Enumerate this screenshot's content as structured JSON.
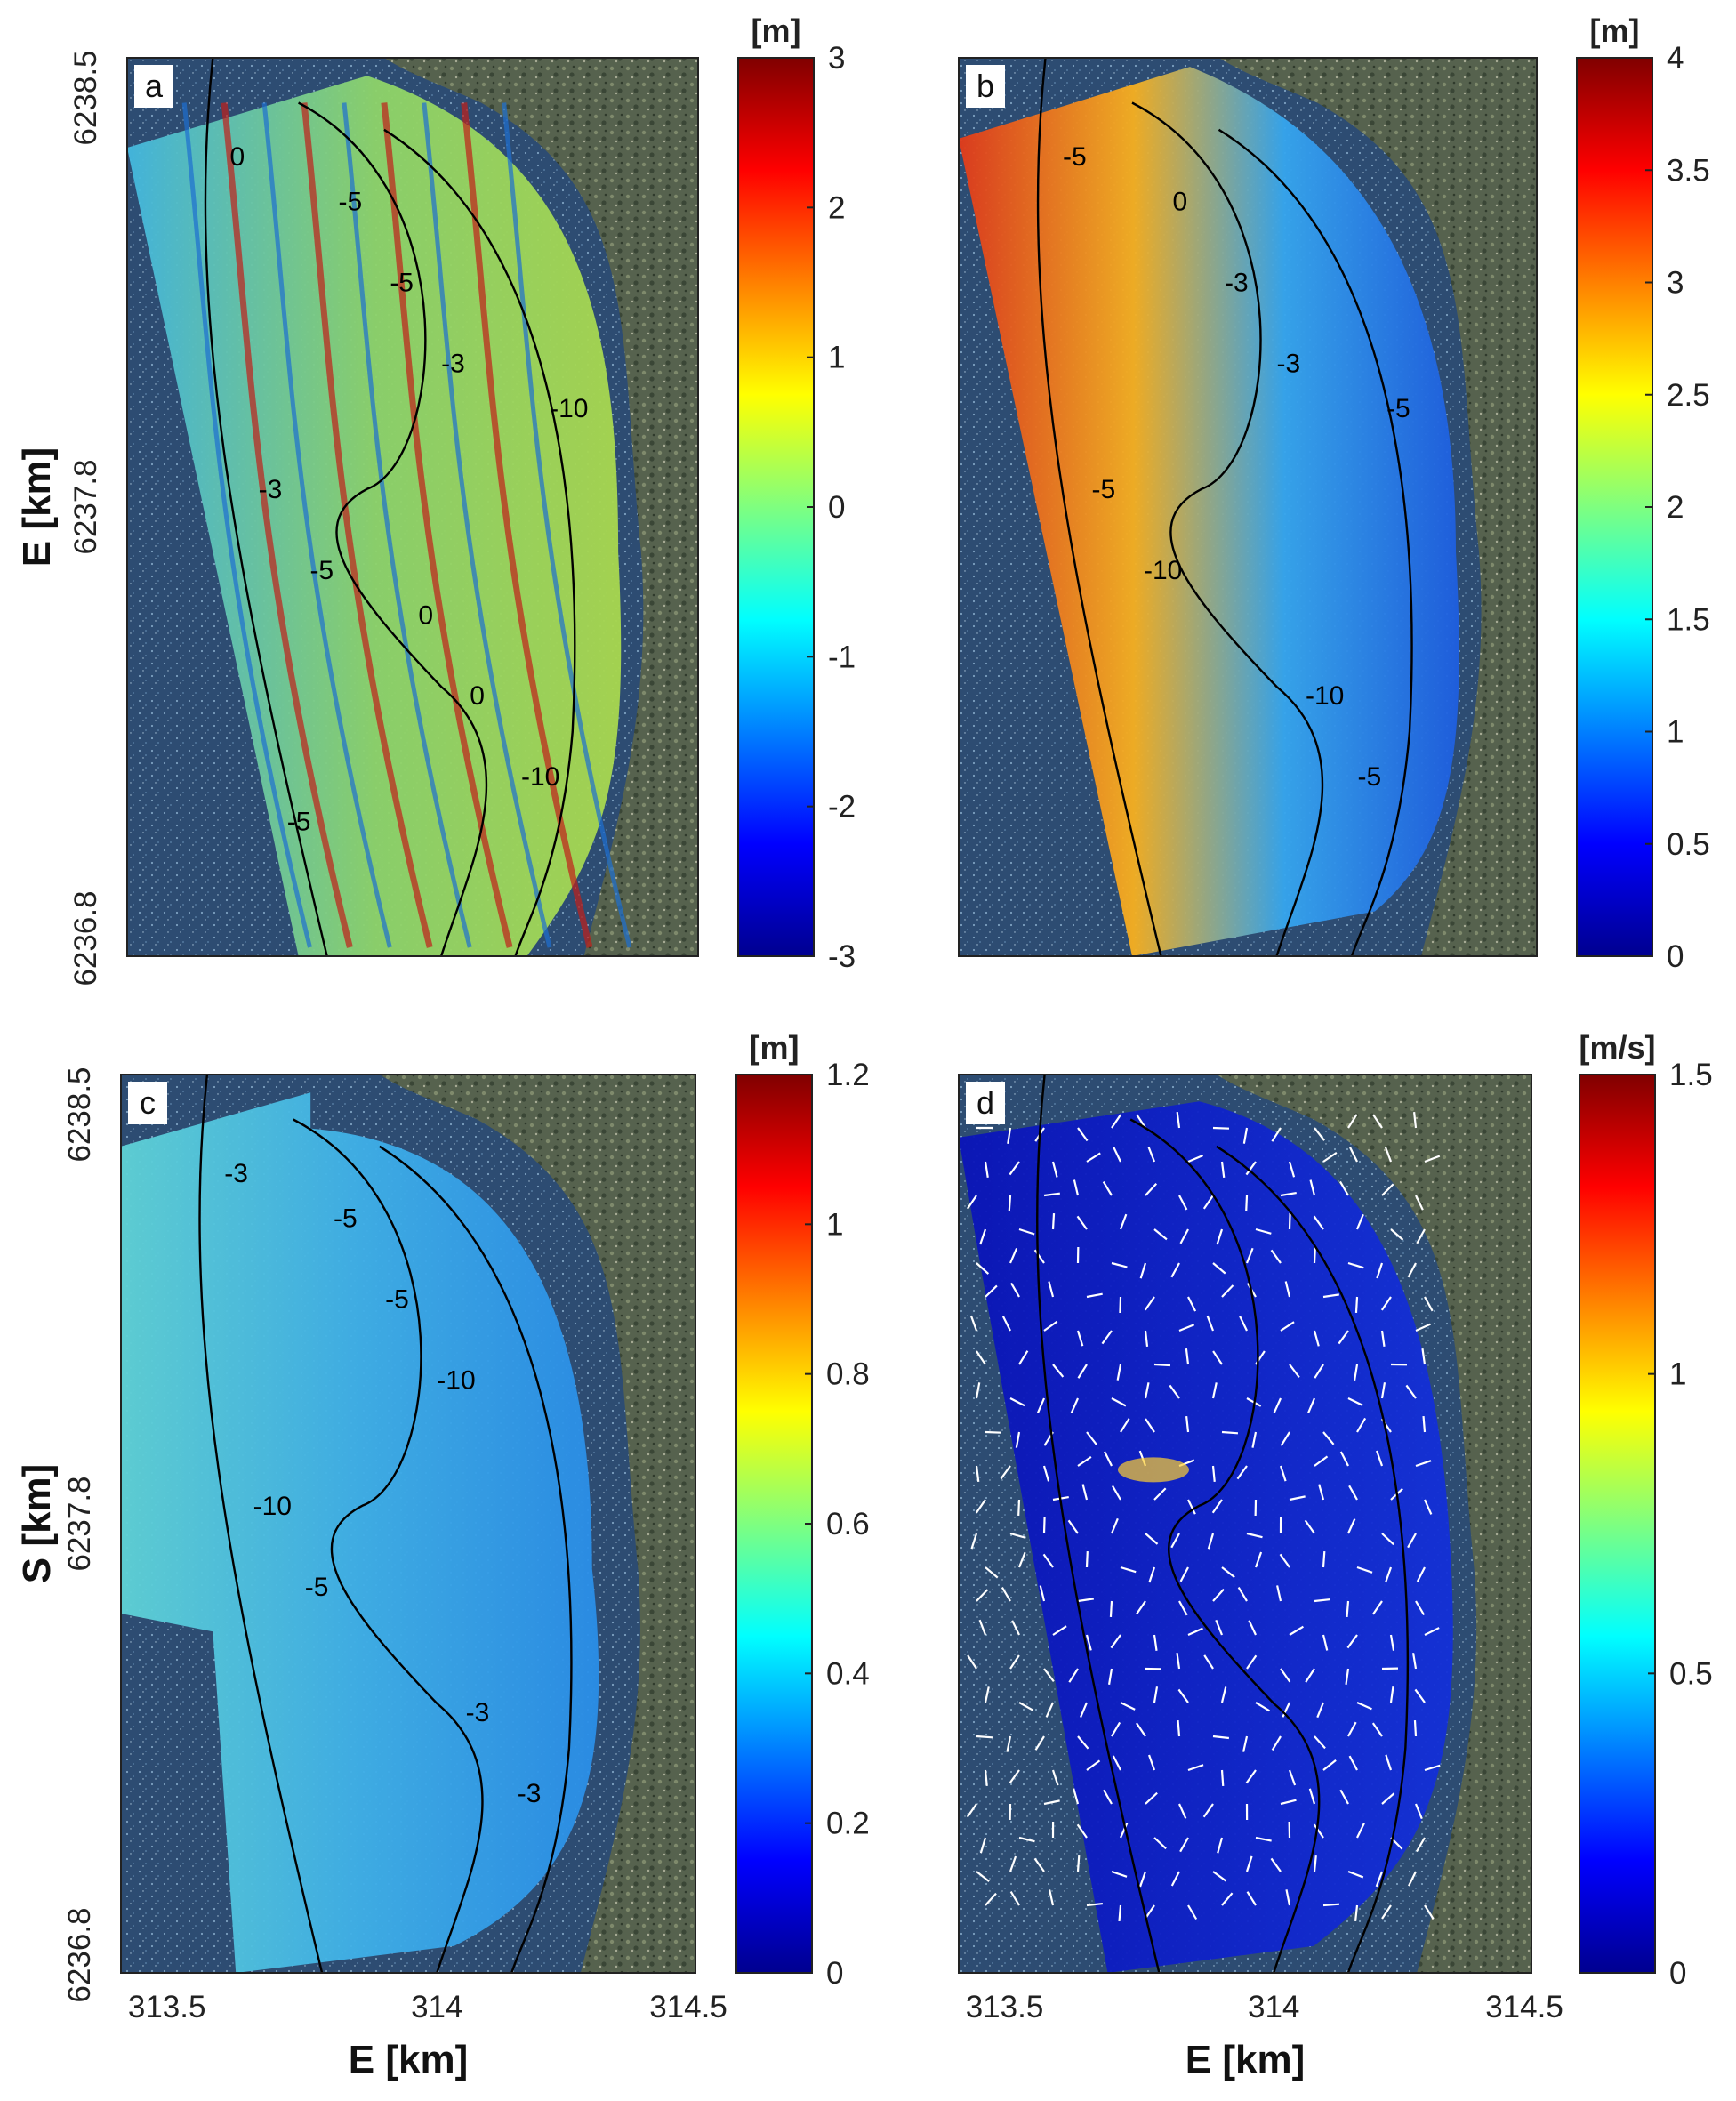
{
  "figure": {
    "x_tick_labels": [
      "313.5",
      "314",
      "314.5"
    ],
    "x_axis_label": "E [km]",
    "y_tick_labels": [
      "6238.5",
      "6237.8",
      "6236.8"
    ],
    "y_axis_label_top": "E [km]",
    "y_axis_label_bottom": "S [km]"
  },
  "chart_data": [
    {
      "type": "heatmap",
      "panel_label": "a",
      "colorbar": {
        "unit": "[m]",
        "min": -3,
        "max": 3,
        "ticks": [
          "3",
          "2",
          "1",
          "0",
          "-1",
          "-2",
          "-3"
        ]
      },
      "contour_labels": [
        "0",
        "-3",
        "-5",
        "-10",
        "-5",
        "-3",
        "0",
        "-5",
        "-10",
        "0",
        "-5"
      ],
      "colormap": "jet",
      "x_ticks": [
        313.5,
        314,
        314.5
      ],
      "y_ticks": [
        6238.5,
        6237.8,
        6236.8
      ]
    },
    {
      "type": "heatmap",
      "panel_label": "b",
      "colorbar": {
        "unit": "[m]",
        "min": 0,
        "max": 4,
        "ticks": [
          "4",
          "3.5",
          "3",
          "2.5",
          "2",
          "1.5",
          "1",
          "0.5",
          "0"
        ]
      },
      "contour_labels": [
        "-5",
        "-3",
        "-10",
        "-5",
        "-3",
        "-5",
        "-10",
        "0",
        "-5"
      ],
      "colormap": "jet",
      "x_ticks": [
        313.5,
        314,
        314.5
      ],
      "y_ticks": [
        6238.5,
        6237.8,
        6236.8
      ]
    },
    {
      "type": "heatmap",
      "panel_label": "c",
      "colorbar": {
        "unit": "[m]",
        "min": 0,
        "max": 1.2,
        "ticks": [
          "1.2",
          "1",
          "0.8",
          "0.6",
          "0.4",
          "0.2",
          "0"
        ]
      },
      "contour_labels": [
        "-3",
        "-10",
        "-5",
        "-3",
        "-5",
        "-10",
        "-3",
        "-5"
      ],
      "colormap": "jet",
      "x_ticks": [
        313.5,
        314,
        314.5
      ],
      "y_ticks": [
        6238.5,
        6237.8,
        6236.8
      ]
    },
    {
      "type": "heatmap",
      "panel_label": "d",
      "colorbar": {
        "unit": "[m/s]",
        "min": 0,
        "max": 1.5,
        "ticks": [
          "1.5",
          "1",
          "0.5",
          "0"
        ]
      },
      "overlay": "velocity vectors (white arrows)",
      "colormap": "jet",
      "x_ticks": [
        313.5,
        314,
        314.5
      ],
      "y_ticks": [
        6238.5,
        6237.8,
        6236.8
      ]
    }
  ],
  "colors": {
    "land_dark": "#3a4a38",
    "land_light": "#8f9a7c",
    "sea_dark": "#213e66",
    "contour": "#000000",
    "vector": "#ffffff"
  }
}
